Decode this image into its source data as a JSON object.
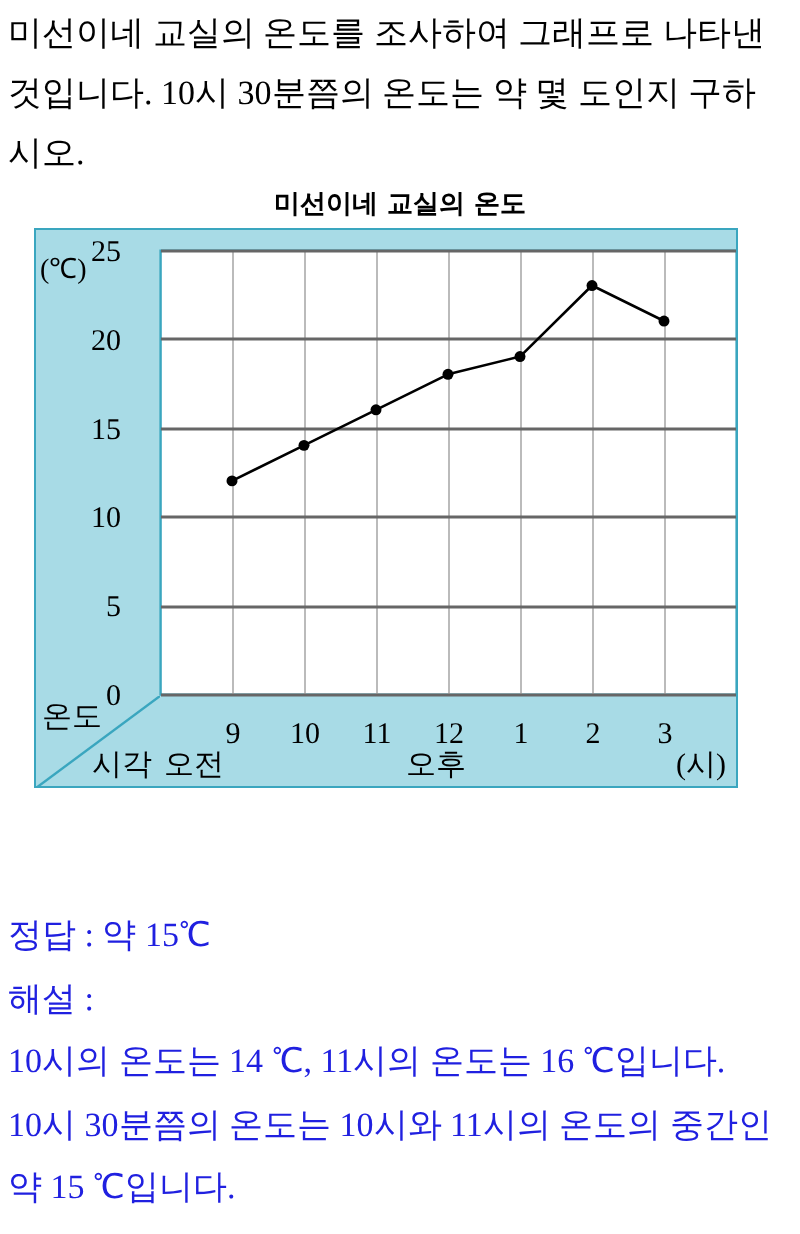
{
  "chart_data": {
    "type": "line",
    "title": "미선이네 교실의 온도",
    "xlabel": "시각",
    "ylabel": "온도",
    "categories": [
      "9",
      "10",
      "11",
      "12",
      "1",
      "2",
      "3"
    ],
    "series": [
      {
        "color": "#000000",
        "values": [
          12,
          14,
          16,
          18,
          19,
          23,
          21
        ]
      }
    ],
    "ylim": [
      0,
      25
    ],
    "yticks": [
      0,
      5,
      10,
      15,
      20,
      25
    ],
    "grid": true,
    "marker": "circle",
    "line_style": "solid",
    "annotations": [
      "미선이네 교실의 온도를 조사하여 그래프로 나타낸 것입니다. 10시 30분쯤의 온도는 약 몇 도인지 구하시오.",
      "(℃)",
      "오전",
      "오후",
      "(시)",
      "정답 : 약 15℃",
      "해설 :",
      "10시의 온도는 14 ℃, 11시의 온도는 16 ℃입니다.",
      "10시 30분쯤의 온도는 10시와 11시의 온도의 중간인 약 15 ℃입니다."
    ]
  }
}
